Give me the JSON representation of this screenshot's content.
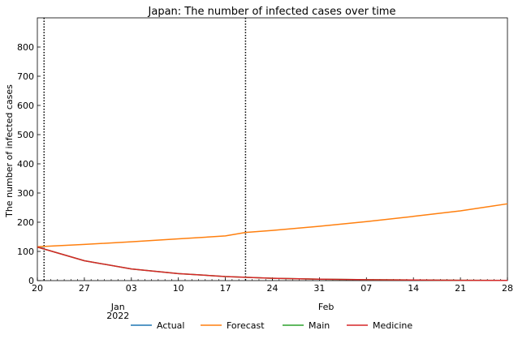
{
  "chart_data": {
    "type": "line",
    "title": "Japan: The number of infected cases over time",
    "ylabel": "The number of infected cases",
    "xlabel": "",
    "x_start": "2021-12-20",
    "x_end": "2022-02-28",
    "ylim": [
      0,
      900
    ],
    "y_ticks": [
      0,
      100,
      200,
      300,
      400,
      500,
      600,
      700,
      800
    ],
    "x_tick_labels": [
      {
        "date": "2021-12-20",
        "label": "20"
      },
      {
        "date": "2021-12-27",
        "label": "27"
      },
      {
        "date": "2022-01-03",
        "label": "03"
      },
      {
        "date": "2022-01-10",
        "label": "10"
      },
      {
        "date": "2022-01-17",
        "label": "17"
      },
      {
        "date": "2022-01-24",
        "label": "24"
      },
      {
        "date": "2022-01-31",
        "label": "31"
      },
      {
        "date": "2022-02-07",
        "label": "07"
      },
      {
        "date": "2022-02-14",
        "label": "14"
      },
      {
        "date": "2022-02-21",
        "label": "21"
      },
      {
        "date": "2022-02-28",
        "label": "28"
      }
    ],
    "month_labels": [
      {
        "date": "2022-01-01",
        "label": "Jan",
        "year": "2022"
      },
      {
        "date": "2022-02-01",
        "label": "Feb",
        "year": ""
      }
    ],
    "vlines": [
      "2021-12-21",
      "2022-01-20"
    ],
    "legend_position": "bottom",
    "series": [
      {
        "name": "Actual",
        "color": "#1f77b4",
        "x": [
          "2021-12-20",
          "2021-12-21"
        ],
        "values": [
          115,
          110
        ]
      },
      {
        "name": "Forecast",
        "color": "#ff7f0e",
        "x": [
          "2021-12-20",
          "2021-12-27",
          "2022-01-03",
          "2022-01-10",
          "2022-01-17",
          "2022-01-20",
          "2022-01-24",
          "2022-01-31",
          "2022-02-07",
          "2022-02-14",
          "2022-02-21",
          "2022-02-28"
        ],
        "values": [
          116,
          124,
          133,
          143,
          153,
          165,
          172,
          186,
          202,
          220,
          239,
          263
        ]
      },
      {
        "name": "Main",
        "color": "#2ca02c",
        "x": [
          "2021-12-20",
          "2021-12-27",
          "2022-01-03",
          "2022-01-10",
          "2022-01-17",
          "2022-01-24",
          "2022-01-31",
          "2022-02-07",
          "2022-02-14",
          "2022-02-21",
          "2022-02-28"
        ],
        "values": [
          115,
          68,
          40,
          24,
          14,
          8,
          5,
          3,
          2,
          1,
          0.6
        ]
      },
      {
        "name": "Medicine",
        "color": "#d62728",
        "x": [
          "2021-12-20",
          "2021-12-27",
          "2022-01-03",
          "2022-01-10",
          "2022-01-17",
          "2022-01-24",
          "2022-01-31",
          "2022-02-07",
          "2022-02-14",
          "2022-02-21",
          "2022-02-28"
        ],
        "values": [
          115,
          68,
          40,
          24,
          14,
          8,
          5,
          3,
          2,
          1,
          0.6
        ]
      }
    ]
  }
}
